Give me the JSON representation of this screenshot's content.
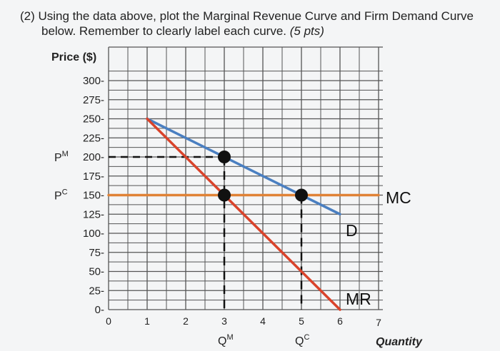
{
  "question": {
    "line1": "(2) Using the data above, plot the Marginal Revenue Curve and Firm Demand Curve",
    "line2": "below. Remember to clearly label each curve.",
    "points": "(5 pts)"
  },
  "chart_data": {
    "type": "line",
    "ylabel": "Price ($)",
    "xlabel": "Quantity",
    "xlim": [
      0,
      7
    ],
    "ylim": [
      0,
      325
    ],
    "x_ticks": [
      "0",
      "1",
      "2",
      "3",
      "4",
      "5",
      "6",
      "7"
    ],
    "y_ticks": [
      {
        "value": 300,
        "label": "300-"
      },
      {
        "value": 275,
        "label": "275-"
      },
      {
        "value": 250,
        "label": "250-"
      },
      {
        "value": 225,
        "label": "225-"
      },
      {
        "value": 200,
        "label": "200-"
      },
      {
        "value": 175,
        "label": "175-"
      },
      {
        "value": 150,
        "label": "150-"
      },
      {
        "value": 125,
        "label": "125-"
      },
      {
        "value": 100,
        "label": "100-"
      },
      {
        "value": 75,
        "label": "75-"
      },
      {
        "value": 50,
        "label": "50-"
      },
      {
        "value": 25,
        "label": "25-"
      },
      {
        "value": 0,
        "label": "0-"
      }
    ],
    "grid": true,
    "series": [
      {
        "name": "D",
        "color": "#4a7fc1",
        "points": [
          [
            1,
            250
          ],
          [
            6,
            125
          ]
        ]
      },
      {
        "name": "MR",
        "color": "#d9432b",
        "points": [
          [
            1,
            250
          ],
          [
            6,
            0
          ]
        ]
      },
      {
        "name": "MC",
        "color": "#e08236",
        "points": [
          [
            0,
            150
          ],
          [
            7,
            150
          ]
        ]
      }
    ],
    "key_points": [
      [
        3,
        200
      ],
      [
        3,
        150
      ],
      [
        5,
        150
      ]
    ],
    "price_marks": [
      {
        "value": 200,
        "label": "P",
        "sup": "M"
      },
      {
        "value": 150,
        "label": "P",
        "sup": "C"
      }
    ],
    "quantity_marks": [
      {
        "value": 3,
        "label": "Q",
        "sup": "M"
      },
      {
        "value": 5,
        "label": "Q",
        "sup": "C"
      }
    ]
  }
}
